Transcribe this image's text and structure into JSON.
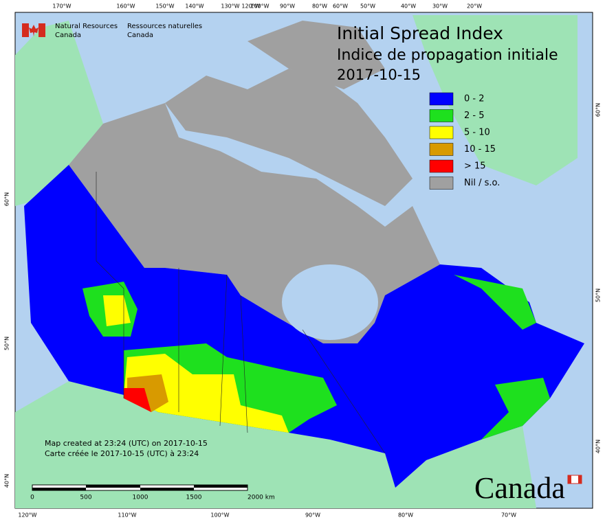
{
  "header": {
    "agency_en": [
      "Natural Resources",
      "Canada"
    ],
    "agency_fr": [
      "Ressources naturelles",
      "Canada"
    ],
    "title": "Initial Spread Index",
    "title_fr": "Indice de propagation initiale",
    "date": "2017-10-15"
  },
  "legend": [
    {
      "label": "0 - 2",
      "color": "#0000ff"
    },
    {
      "label": "2 - 5",
      "color": "#1ee01e"
    },
    {
      "label": "5 - 10",
      "color": "#ffff00"
    },
    {
      "label": "10 - 15",
      "color": "#d89a00"
    },
    {
      "label": "> 15",
      "color": "#ff0000"
    },
    {
      "label": "Nil / s.o.",
      "color": "#a0a0a0"
    }
  ],
  "graticule": {
    "top": [
      "170°W",
      "160°W",
      "150°W",
      "140°W",
      "130°W",
      "120°W",
      "100°W",
      "90°W",
      "80°W",
      "60°W",
      "50°W",
      "40°W",
      "30°W",
      "20°W"
    ],
    "bottom": [
      "120°W",
      "110°W",
      "100°W",
      "90°W",
      "80°W",
      "70°W"
    ],
    "left": [
      "60°N",
      "50°N",
      "40°N"
    ],
    "right": [
      "60°N",
      "50°N",
      "40°N"
    ]
  },
  "footnote": [
    "Map created at 23:24 (UTC) on 2017-10-15",
    "Carte créée le 2017-10-15 (UTC) à 23:24"
  ],
  "scale": {
    "labels": [
      "0",
      "500",
      "1000",
      "1500",
      "2000 km"
    ]
  },
  "wordmark": "Canada"
}
